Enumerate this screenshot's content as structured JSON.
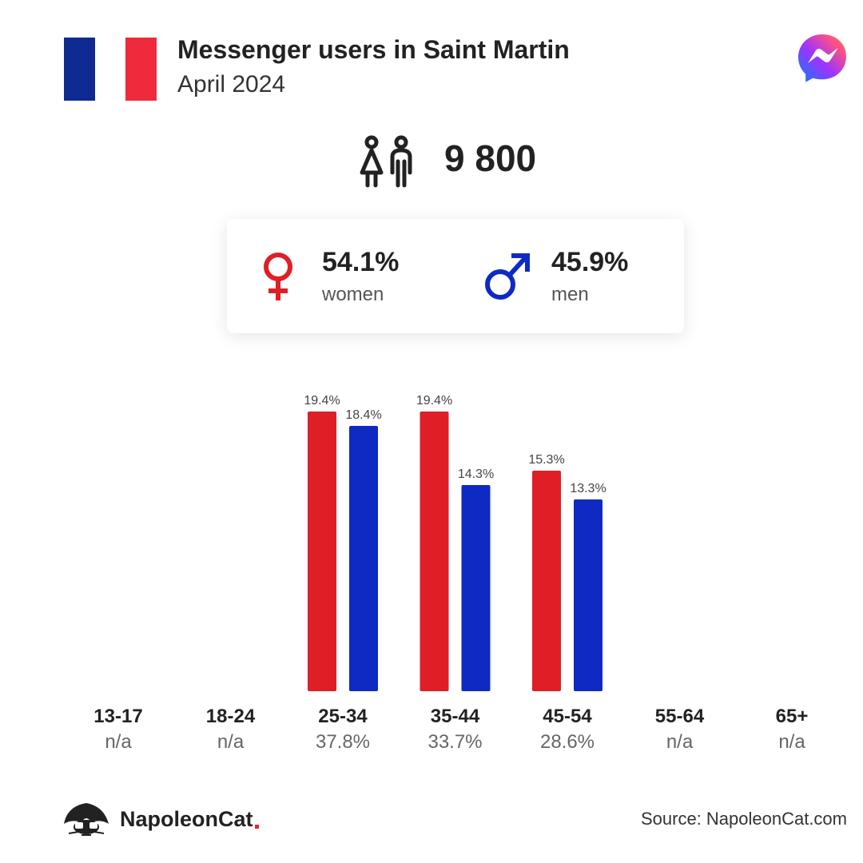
{
  "header": {
    "title": "Messenger users in Saint Martin",
    "subtitle": "April 2024",
    "flag_colors": [
      "#0f2a91",
      "#ffffff",
      "#ee2a3c"
    ],
    "flag_icon": "france-flag-icon",
    "app_icon": "messenger-logo-icon"
  },
  "summary": {
    "total_users": "9 800",
    "users_icon": "people-icon"
  },
  "gender": {
    "women": {
      "percent": "54.1%",
      "label": "women",
      "icon": "female-symbol-icon",
      "color": "#de1f26"
    },
    "men": {
      "percent": "45.9%",
      "label": "men",
      "icon": "male-symbol-icon",
      "color": "#0f2ac3"
    }
  },
  "chart_data": {
    "type": "bar",
    "categories": [
      "13-17",
      "18-24",
      "25-34",
      "35-44",
      "45-54",
      "55-64",
      "65+"
    ],
    "category_totals": [
      "n/a",
      "n/a",
      "37.8%",
      "33.7%",
      "28.6%",
      "n/a",
      "n/a"
    ],
    "series": [
      {
        "color": "#de1f26",
        "values": [
          null,
          null,
          19.4,
          19.4,
          15.3,
          null,
          null
        ],
        "labels": [
          "",
          "",
          "19.4%",
          "19.4%",
          "15.3%",
          "",
          ""
        ]
      },
      {
        "color": "#0f2ac3",
        "values": [
          null,
          null,
          18.4,
          14.3,
          13.3,
          null,
          null
        ],
        "labels": [
          "",
          "",
          "18.4%",
          "14.3%",
          "13.3%",
          "",
          ""
        ]
      }
    ],
    "ylim": [
      0,
      19.4
    ],
    "grid": false,
    "legend": "none"
  },
  "footer": {
    "brand": "NapoleonCat",
    "brand_icon": "napoleoncat-logo-icon",
    "source": "Source: NapoleonCat.com"
  }
}
